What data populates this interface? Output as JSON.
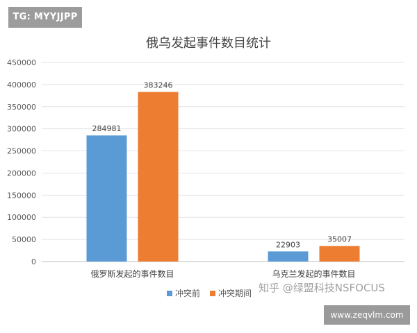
{
  "tag_label": "TG: MYYJJPP",
  "watermark": "知乎 @绿盟科技NSFOCUS",
  "site": "www.zeqvlm.com",
  "colors": {
    "series_before": "#5b9bd5",
    "series_during": "#ed7d31"
  },
  "chart_data": {
    "type": "bar",
    "title": "俄乌发起事件数目统计",
    "categories": [
      "俄罗斯发起的事件数目",
      "乌克兰发起的事件数目"
    ],
    "series": [
      {
        "name": "冲突前",
        "values": [
          284981,
          22903
        ]
      },
      {
        "name": "冲突期间",
        "values": [
          383246,
          35007
        ]
      }
    ],
    "ylim": [
      0,
      450000
    ],
    "yticks": [
      0,
      50000,
      100000,
      150000,
      200000,
      250000,
      300000,
      350000,
      400000,
      450000
    ],
    "grid": true,
    "legend": "bottom"
  }
}
